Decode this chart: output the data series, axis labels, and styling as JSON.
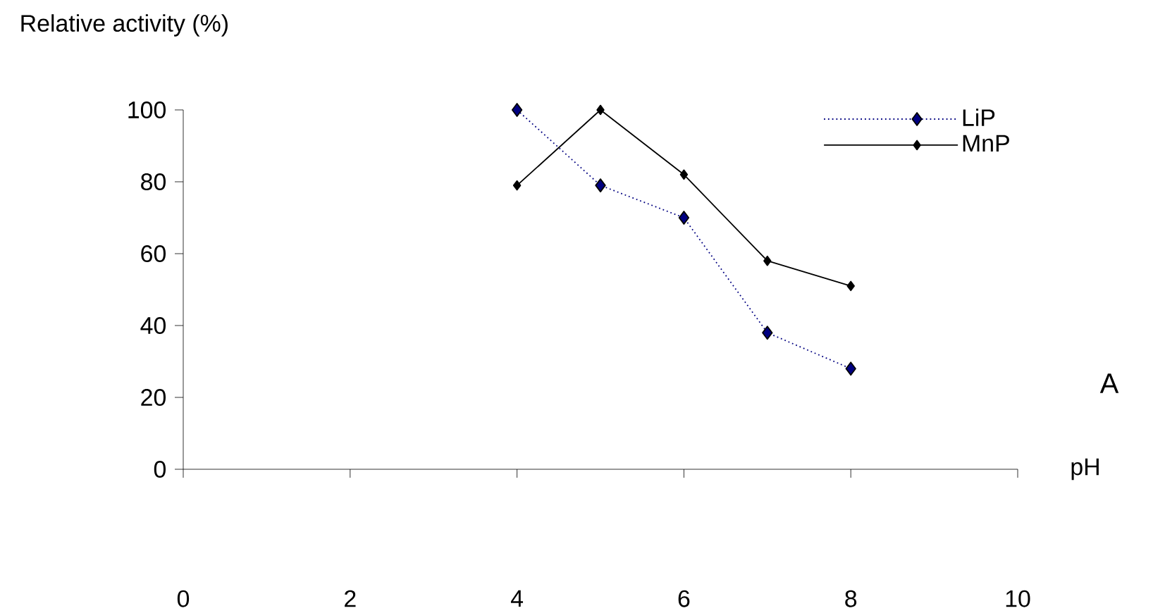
{
  "chart_data": {
    "type": "line",
    "ylabel": "Relative activity (%)",
    "xlabel": "pH",
    "x": [
      4,
      5,
      6,
      7,
      8
    ],
    "series": [
      {
        "name": "LiP",
        "color": "#000080",
        "values": [
          100,
          79,
          70,
          38,
          28
        ],
        "line_style": "dotted",
        "marker": "diamond"
      },
      {
        "name": "MnP",
        "color": "#000000",
        "values": [
          79,
          100,
          82,
          58,
          51
        ],
        "line_style": "solid",
        "marker": "diamond"
      }
    ],
    "xlim": [
      0,
      10
    ],
    "xticks": [
      0,
      2,
      4,
      6,
      8,
      10
    ],
    "ylim": [
      0,
      100
    ],
    "yticks": [
      0,
      20,
      40,
      60,
      80,
      100
    ],
    "grid": false,
    "legend": "top right",
    "annotations": [
      "A"
    ]
  }
}
